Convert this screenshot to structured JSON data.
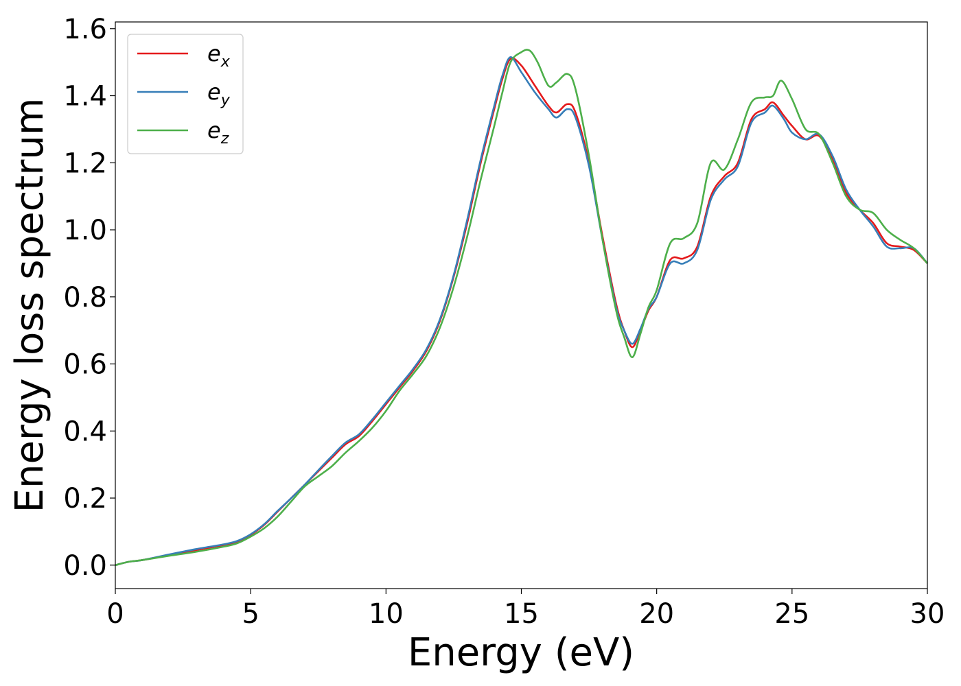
{
  "chart_data": {
    "type": "line",
    "xlabel": "Energy (eV)",
    "ylabel": "Energy loss spectrum",
    "xlim": [
      0,
      30
    ],
    "ylim": [
      -0.07,
      1.62
    ],
    "xticks": [
      0,
      5,
      10,
      15,
      20,
      25,
      30
    ],
    "xtick_labels": [
      "0",
      "5",
      "10",
      "15",
      "20",
      "25",
      "30"
    ],
    "yticks": [
      0.0,
      0.2,
      0.4,
      0.6,
      0.8,
      1.0,
      1.2,
      1.4,
      1.6
    ],
    "ytick_labels": [
      "0.0",
      "0.2",
      "0.4",
      "0.6",
      "0.8",
      "1.0",
      "1.2",
      "1.4",
      "1.6"
    ],
    "grid": false,
    "legend_position": "top-left",
    "series": [
      {
        "name": "e",
        "subscript": "x",
        "color": "#e41a1c",
        "points": [
          [
            0,
            0.0
          ],
          [
            0.5,
            0.01
          ],
          [
            1,
            0.015
          ],
          [
            2,
            0.03
          ],
          [
            3,
            0.045
          ],
          [
            4,
            0.06
          ],
          [
            4.5,
            0.07
          ],
          [
            5,
            0.09
          ],
          [
            5.5,
            0.12
          ],
          [
            6,
            0.16
          ],
          [
            6.5,
            0.2
          ],
          [
            7,
            0.24
          ],
          [
            7.5,
            0.28
          ],
          [
            8,
            0.32
          ],
          [
            8.5,
            0.36
          ],
          [
            9,
            0.385
          ],
          [
            9.5,
            0.43
          ],
          [
            10,
            0.48
          ],
          [
            10.5,
            0.53
          ],
          [
            11,
            0.58
          ],
          [
            11.5,
            0.64
          ],
          [
            12,
            0.73
          ],
          [
            12.5,
            0.86
          ],
          [
            13,
            1.02
          ],
          [
            13.5,
            1.2
          ],
          [
            14,
            1.36
          ],
          [
            14.3,
            1.45
          ],
          [
            14.6,
            1.51
          ],
          [
            15,
            1.49
          ],
          [
            15.5,
            1.43
          ],
          [
            16,
            1.37
          ],
          [
            16.3,
            1.35
          ],
          [
            16.7,
            1.375
          ],
          [
            17,
            1.35
          ],
          [
            17.5,
            1.2
          ],
          [
            18,
            0.98
          ],
          [
            18.5,
            0.78
          ],
          [
            18.8,
            0.7
          ],
          [
            19.1,
            0.65
          ],
          [
            19.4,
            0.7
          ],
          [
            19.7,
            0.76
          ],
          [
            20,
            0.8
          ],
          [
            20.5,
            0.91
          ],
          [
            21,
            0.915
          ],
          [
            21.5,
            0.95
          ],
          [
            22,
            1.1
          ],
          [
            22.5,
            1.16
          ],
          [
            23,
            1.2
          ],
          [
            23.5,
            1.33
          ],
          [
            24,
            1.36
          ],
          [
            24.3,
            1.38
          ],
          [
            24.7,
            1.34
          ],
          [
            25,
            1.31
          ],
          [
            25.5,
            1.27
          ],
          [
            26,
            1.28
          ],
          [
            26.5,
            1.21
          ],
          [
            27,
            1.11
          ],
          [
            27.5,
            1.06
          ],
          [
            28,
            1.02
          ],
          [
            28.5,
            0.96
          ],
          [
            29,
            0.95
          ],
          [
            29.5,
            0.94
          ],
          [
            30,
            0.9
          ]
        ]
      },
      {
        "name": "e",
        "subscript": "y",
        "color": "#377eb8",
        "points": [
          [
            0,
            0.0
          ],
          [
            0.5,
            0.01
          ],
          [
            1,
            0.015
          ],
          [
            2,
            0.032
          ],
          [
            3,
            0.048
          ],
          [
            4,
            0.062
          ],
          [
            4.5,
            0.072
          ],
          [
            5,
            0.092
          ],
          [
            5.5,
            0.122
          ],
          [
            6,
            0.162
          ],
          [
            6.5,
            0.2
          ],
          [
            7,
            0.24
          ],
          [
            7.5,
            0.283
          ],
          [
            8,
            0.325
          ],
          [
            8.5,
            0.365
          ],
          [
            9,
            0.39
          ],
          [
            9.5,
            0.435
          ],
          [
            10,
            0.485
          ],
          [
            10.5,
            0.535
          ],
          [
            11,
            0.585
          ],
          [
            11.5,
            0.645
          ],
          [
            12,
            0.735
          ],
          [
            12.5,
            0.865
          ],
          [
            13,
            1.03
          ],
          [
            13.5,
            1.21
          ],
          [
            14,
            1.37
          ],
          [
            14.3,
            1.46
          ],
          [
            14.6,
            1.515
          ],
          [
            15,
            1.47
          ],
          [
            15.5,
            1.41
          ],
          [
            16,
            1.36
          ],
          [
            16.3,
            1.335
          ],
          [
            16.7,
            1.36
          ],
          [
            17,
            1.335
          ],
          [
            17.5,
            1.19
          ],
          [
            18,
            0.97
          ],
          [
            18.5,
            0.77
          ],
          [
            18.8,
            0.7
          ],
          [
            19.1,
            0.66
          ],
          [
            19.4,
            0.705
          ],
          [
            19.7,
            0.765
          ],
          [
            20,
            0.8
          ],
          [
            20.5,
            0.9
          ],
          [
            21,
            0.9
          ],
          [
            21.5,
            0.94
          ],
          [
            22,
            1.09
          ],
          [
            22.5,
            1.15
          ],
          [
            23,
            1.19
          ],
          [
            23.5,
            1.32
          ],
          [
            24,
            1.35
          ],
          [
            24.3,
            1.37
          ],
          [
            24.7,
            1.33
          ],
          [
            25,
            1.29
          ],
          [
            25.5,
            1.27
          ],
          [
            26,
            1.285
          ],
          [
            26.5,
            1.22
          ],
          [
            27,
            1.12
          ],
          [
            27.5,
            1.06
          ],
          [
            28,
            1.01
          ],
          [
            28.5,
            0.95
          ],
          [
            29,
            0.945
          ],
          [
            29.5,
            0.945
          ],
          [
            30,
            0.9
          ]
        ]
      },
      {
        "name": "e",
        "subscript": "z",
        "color": "#4daf4a",
        "points": [
          [
            0,
            0.0
          ],
          [
            0.5,
            0.01
          ],
          [
            1,
            0.015
          ],
          [
            2,
            0.028
          ],
          [
            3,
            0.04
          ],
          [
            4,
            0.055
          ],
          [
            4.5,
            0.065
          ],
          [
            5,
            0.085
          ],
          [
            5.5,
            0.11
          ],
          [
            6,
            0.145
          ],
          [
            6.5,
            0.19
          ],
          [
            7,
            0.235
          ],
          [
            7.5,
            0.265
          ],
          [
            8,
            0.295
          ],
          [
            8.5,
            0.335
          ],
          [
            9,
            0.37
          ],
          [
            9.5,
            0.41
          ],
          [
            10,
            0.46
          ],
          [
            10.5,
            0.52
          ],
          [
            11,
            0.57
          ],
          [
            11.5,
            0.625
          ],
          [
            12,
            0.71
          ],
          [
            12.5,
            0.83
          ],
          [
            13,
            0.98
          ],
          [
            13.5,
            1.15
          ],
          [
            14,
            1.31
          ],
          [
            14.3,
            1.41
          ],
          [
            14.6,
            1.5
          ],
          [
            15,
            1.53
          ],
          [
            15.3,
            1.535
          ],
          [
            15.6,
            1.5
          ],
          [
            16,
            1.43
          ],
          [
            16.3,
            1.44
          ],
          [
            16.7,
            1.465
          ],
          [
            17,
            1.42
          ],
          [
            17.5,
            1.22
          ],
          [
            18,
            0.97
          ],
          [
            18.5,
            0.76
          ],
          [
            18.8,
            0.68
          ],
          [
            19.1,
            0.62
          ],
          [
            19.4,
            0.69
          ],
          [
            19.7,
            0.77
          ],
          [
            20,
            0.82
          ],
          [
            20.5,
            0.96
          ],
          [
            21,
            0.975
          ],
          [
            21.5,
            1.02
          ],
          [
            22,
            1.2
          ],
          [
            22.5,
            1.18
          ],
          [
            23,
            1.27
          ],
          [
            23.5,
            1.38
          ],
          [
            24,
            1.395
          ],
          [
            24.3,
            1.4
          ],
          [
            24.6,
            1.445
          ],
          [
            25,
            1.39
          ],
          [
            25.5,
            1.3
          ],
          [
            26,
            1.285
          ],
          [
            26.5,
            1.2
          ],
          [
            27,
            1.1
          ],
          [
            27.5,
            1.06
          ],
          [
            28,
            1.05
          ],
          [
            28.5,
            1.0
          ],
          [
            29,
            0.97
          ],
          [
            29.5,
            0.945
          ],
          [
            30,
            0.9
          ]
        ]
      }
    ]
  }
}
